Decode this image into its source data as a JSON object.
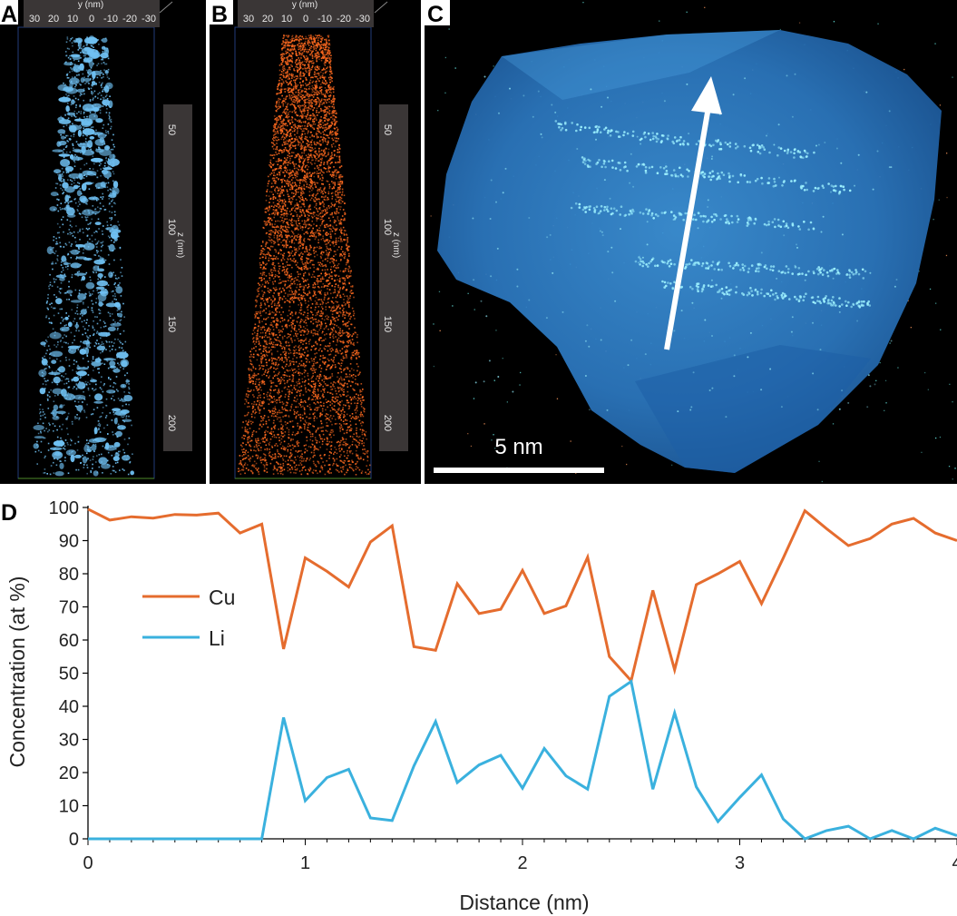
{
  "panels": {
    "a": {
      "letter": "A",
      "y_axis_title": "y (nm)",
      "y_ticks": [
        "30",
        "20",
        "10",
        "0",
        "-10",
        "-20",
        "-30"
      ],
      "z_axis_title": "z (nm)",
      "z_ticks": [
        "50",
        "100",
        "150",
        "200"
      ],
      "dot_color": "#6fc0f2"
    },
    "b": {
      "letter": "B",
      "y_axis_title": "y (nm)",
      "y_ticks": [
        "30",
        "20",
        "10",
        "0",
        "-10",
        "-20",
        "-30"
      ],
      "z_axis_title": "z (nm)",
      "z_ticks": [
        "50",
        "100",
        "150",
        "200"
      ],
      "dot_color": "#ff6a1f"
    },
    "c": {
      "letter": "C",
      "scale_label": "5 nm",
      "blob_color": "#2f7fc8"
    }
  },
  "chart_data": {
    "type": "line",
    "panel_letter": "D",
    "title": "",
    "xlabel": "Distance (nm)",
    "ylabel": "Concentration (at %)",
    "xlim": [
      0,
      4
    ],
    "ylim": [
      0,
      100
    ],
    "x_ticks": [
      "0",
      "1",
      "2",
      "3",
      "4"
    ],
    "y_ticks": [
      "0",
      "10",
      "20",
      "30",
      "40",
      "50",
      "60",
      "70",
      "80",
      "90",
      "100"
    ],
    "x": [
      0,
      0.1,
      0.2,
      0.3,
      0.4,
      0.5,
      0.6,
      0.7,
      0.8,
      0.9,
      1.0,
      1.1,
      1.2,
      1.3,
      1.4,
      1.5,
      1.6,
      1.7,
      1.8,
      1.9,
      2.0,
      2.1,
      2.2,
      2.3,
      2.4,
      2.5,
      2.6,
      2.7,
      2.8,
      2.9,
      3.0,
      3.1,
      3.2,
      3.3,
      3.4,
      3.5,
      3.6,
      3.7,
      3.8,
      3.9,
      4.0
    ],
    "series": [
      {
        "name": "Cu",
        "color": "#e56c2e",
        "values": [
          99.5,
          96.2,
          97.2,
          96.8,
          97.9,
          97.7,
          98.3,
          92.3,
          95.0,
          57.3,
          84.8,
          80.7,
          76.0,
          89.6,
          94.5,
          58.0,
          56.9,
          77.0,
          68.0,
          69.3,
          81.0,
          68.0,
          70.3,
          85.0,
          55.0,
          47.7,
          75.0,
          51.0,
          76.7,
          80.0,
          83.7,
          71.0,
          84.7,
          99.0,
          93.6,
          88.5,
          90.6,
          95.0,
          96.7,
          92.3,
          90.0
        ]
      },
      {
        "name": "Li",
        "color": "#3ab1de",
        "values": [
          0,
          0,
          0,
          0,
          0,
          0,
          0,
          0,
          0,
          36.6,
          11.5,
          18.5,
          21.0,
          6.3,
          5.5,
          22.0,
          35.4,
          17.0,
          22.3,
          25.2,
          15.3,
          27.3,
          19.0,
          15.0,
          43.0,
          47.5,
          15.0,
          38.0,
          15.7,
          5.2,
          12.5,
          19.3,
          6.0,
          0,
          2.5,
          3.8,
          0,
          2.5,
          0,
          3.2,
          1.0
        ]
      }
    ],
    "legend_position": "upper-left inside plot"
  }
}
